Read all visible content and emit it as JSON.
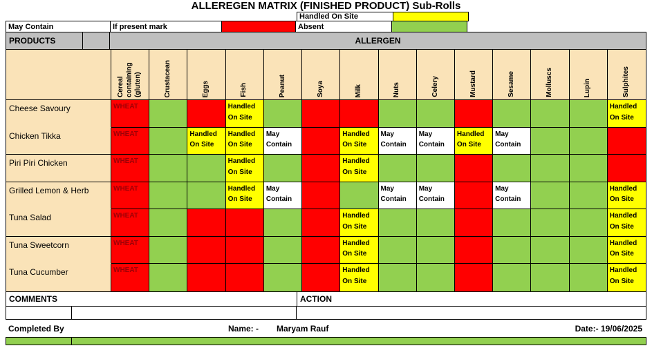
{
  "title": "ALLEREGEN MATRIX (FINISHED PRODUCT)  Sub-Rolls",
  "legend": {
    "handled_on_site": "Handled On Site",
    "may_contain": "May Contain",
    "if_present_mark": "If present mark",
    "absent": "Absent"
  },
  "header": {
    "products": "PRODUCTS",
    "allergen": "ALLERGEN"
  },
  "allergens": [
    "Cereal containing (gluten)",
    "Crustacean",
    "Eggs",
    "Fish",
    "Peanut",
    "Soya",
    "Milk",
    "Nuts",
    "Celery",
    "Mustard",
    "Sesame",
    "Molluscs",
    "Lupin",
    "Sulphites"
  ],
  "cell_labels": {
    "wheat": "WHEAT",
    "handled": "Handled On Site",
    "may": "May Contain"
  },
  "rows": [
    {
      "product": "Cheese Savoury",
      "group": 1,
      "cells": [
        "wheat",
        "green",
        "red",
        "handled",
        "green",
        "red",
        "red",
        "green",
        "green",
        "red",
        "green",
        "green",
        "green",
        "handled"
      ]
    },
    {
      "product": "Chicken Tikka",
      "group": 1,
      "cells": [
        "wheat",
        "green",
        "handled",
        "handled",
        "may",
        "red",
        "handled",
        "may",
        "may",
        "handled",
        "may",
        "green",
        "green",
        "red"
      ]
    },
    {
      "product": "Piri Piri Chicken",
      "group": 2,
      "cells": [
        "wheat",
        "green",
        "green",
        "handled",
        "green",
        "red",
        "handled",
        "green",
        "green",
        "red",
        "green",
        "green",
        "green",
        "red"
      ]
    },
    {
      "product": "Grilled Lemon & Herb",
      "group": 3,
      "cells": [
        "wheat",
        "green",
        "green",
        "handled",
        "may",
        "red",
        "green",
        "may",
        "may",
        "red",
        "may",
        "green",
        "green",
        "handled"
      ]
    },
    {
      "product": "Tuna Salad",
      "group": 3,
      "cells": [
        "wheat",
        "green",
        "red",
        "red",
        "green",
        "red",
        "handled",
        "green",
        "green",
        "red",
        "green",
        "green",
        "green",
        "handled"
      ]
    },
    {
      "product": "Tuna Sweetcorn",
      "group": 4,
      "cells": [
        "wheat",
        "green",
        "red",
        "red",
        "green",
        "red",
        "handled",
        "green",
        "green",
        "red",
        "green",
        "green",
        "green",
        "handled"
      ]
    },
    {
      "product": "Tuna Cucumber",
      "group": 4,
      "cells": [
        "wheat",
        "green",
        "red",
        "red",
        "green",
        "red",
        "handled",
        "green",
        "green",
        "red",
        "green",
        "green",
        "green",
        "handled"
      ]
    }
  ],
  "footer": {
    "comments": "COMMENTS",
    "action": "ACTION",
    "completed_by": "Completed By",
    "name_label": "Name: -",
    "name_value": "Maryam Rauf",
    "date": "Date:- 19/06/2025"
  },
  "colors": {
    "red": "#FF0000",
    "green": "#92D050",
    "yellow": "#FFFF00",
    "white": "#FFFFFF",
    "cream": "#FAE3B8",
    "grey_header": "#BFBFBF",
    "wheat_text": "#9C0006"
  }
}
